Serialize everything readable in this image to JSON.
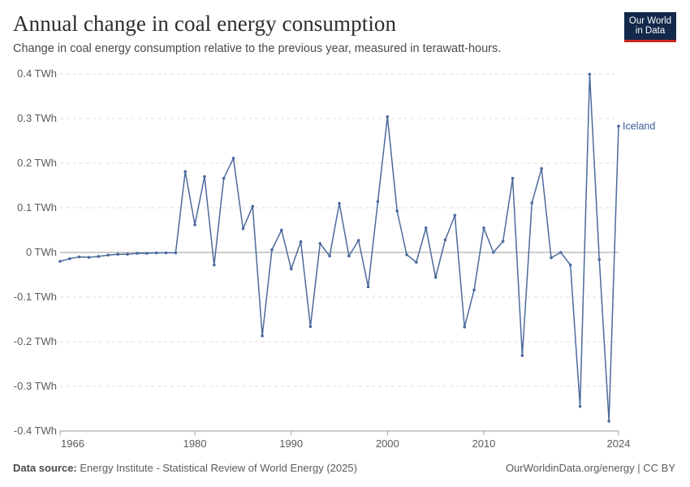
{
  "header": {
    "title": "Annual change in coal energy consumption",
    "subtitle": "Change in coal energy consumption relative to the previous year, measured in terawatt-hours."
  },
  "logo": {
    "line1": "Our World",
    "line2": "in Data",
    "bg_color": "#13294b",
    "accent_color": "#ce261e"
  },
  "footer": {
    "source_label": "Data source:",
    "source_text": "Energy Institute - Statistical Review of World Energy (2025)",
    "right_text": "OurWorldinData.org/energy | CC BY"
  },
  "chart_data": {
    "type": "line",
    "title": "Annual change in coal energy consumption",
    "subtitle": "Change in coal energy consumption relative to the previous year, measured in terawatt-hours.",
    "ylim": [
      -0.4,
      0.4
    ],
    "xlim": [
      1966,
      2024
    ],
    "y_ticks": [
      {
        "value": 0.4,
        "label": "0.4 TWh"
      },
      {
        "value": 0.3,
        "label": "0.3 TWh"
      },
      {
        "value": 0.2,
        "label": "0.2 TWh"
      },
      {
        "value": 0.1,
        "label": "0.1 TWh"
      },
      {
        "value": 0,
        "label": "0 TWh"
      },
      {
        "value": -0.1,
        "label": "-0.1 TWh"
      },
      {
        "value": -0.2,
        "label": "-0.2 TWh"
      },
      {
        "value": -0.3,
        "label": "-0.3 TWh"
      },
      {
        "value": -0.4,
        "label": "-0.4 TWh"
      }
    ],
    "x_ticks": [
      1966,
      1980,
      1990,
      2000,
      2010,
      2024
    ],
    "grid": true,
    "series": [
      {
        "name": "Iceland",
        "color": "#4c6a9c",
        "x": [
          1966,
          1967,
          1968,
          1969,
          1970,
          1971,
          1972,
          1973,
          1974,
          1975,
          1976,
          1977,
          1978,
          1979,
          1980,
          1981,
          1982,
          1983,
          1984,
          1985,
          1986,
          1987,
          1988,
          1989,
          1990,
          1991,
          1992,
          1993,
          1994,
          1995,
          1996,
          1997,
          1998,
          1999,
          2000,
          2001,
          2002,
          2003,
          2004,
          2005,
          2006,
          2007,
          2008,
          2009,
          2010,
          2011,
          2012,
          2013,
          2014,
          2015,
          2016,
          2017,
          2018,
          2019,
          2020,
          2021,
          2022,
          2023,
          2024
        ],
        "values": [
          -0.02,
          -0.014,
          -0.01,
          -0.011,
          -0.009,
          -0.006,
          -0.004,
          -0.004,
          -0.002,
          -0.002,
          -0.001,
          -0.001,
          -0.001,
          0.181,
          0.062,
          0.17,
          -0.028,
          0.166,
          0.211,
          0.053,
          0.103,
          -0.187,
          0.006,
          0.05,
          -0.037,
          0.024,
          -0.166,
          0.02,
          -0.008,
          0.11,
          -0.008,
          0.027,
          -0.077,
          0.114,
          0.304,
          0.093,
          -0.005,
          -0.022,
          0.055,
          -0.056,
          0.028,
          0.083,
          -0.167,
          -0.084,
          0.055,
          0.0,
          0.025,
          0.166,
          -0.231,
          0.111,
          0.188,
          -0.012,
          0.0,
          -0.028,
          -0.345,
          0.399,
          -0.016,
          -0.378,
          0.283
        ]
      }
    ]
  }
}
